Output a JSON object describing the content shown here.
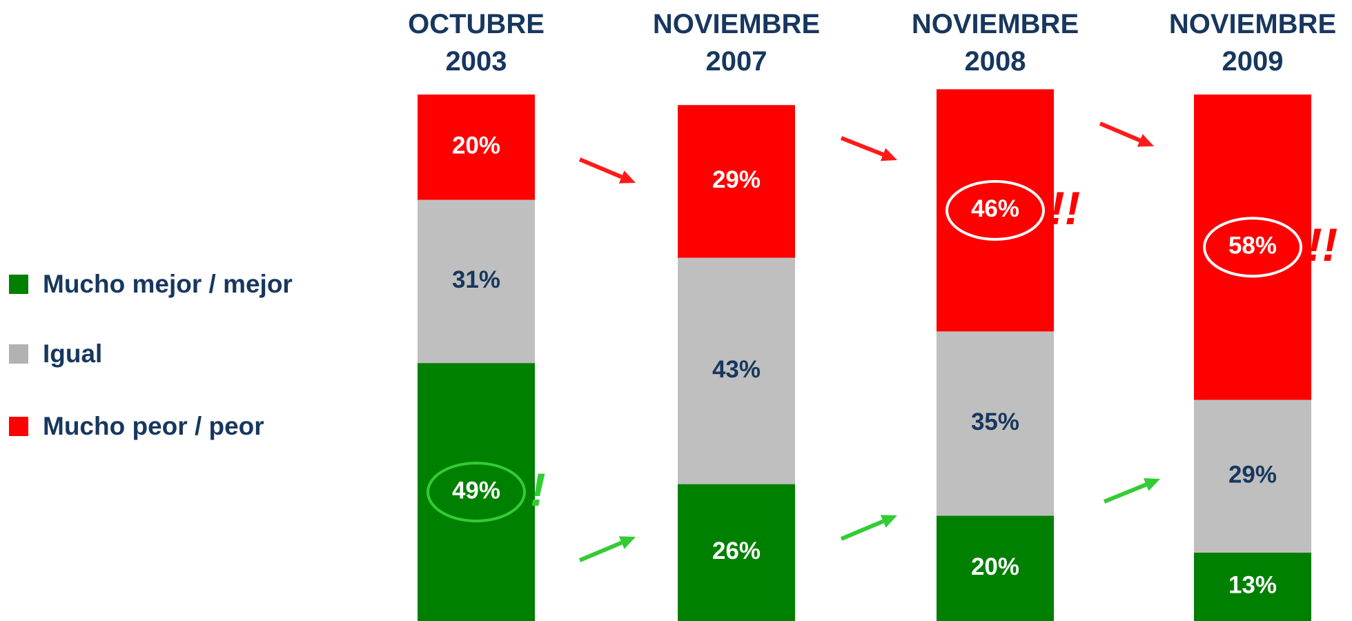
{
  "chart_data": {
    "type": "stacked_bar",
    "categories": [
      "OCTUBRE\n2003",
      "NOVIEMBRE\n2007",
      "NOVIEMBRE\n2008",
      "NOVIEMBRE\n2009"
    ],
    "series": [
      {
        "name": "Mucho mejor / mejor",
        "color": "#008000",
        "label_color": "#ffffff",
        "values": [
          49,
          26,
          20,
          13
        ],
        "value_labels": [
          "49%",
          "26%",
          "20%",
          "13%"
        ]
      },
      {
        "name": "Igual",
        "color": "#bfbfbf",
        "legend_color": "#b2b2b2",
        "label_color": "#17375e",
        "values": [
          31,
          43,
          35,
          29
        ],
        "value_labels": [
          "31%",
          "43%",
          "35%",
          "29%"
        ]
      },
      {
        "name": "Mucho peor / peor",
        "color": "#ff0000",
        "label_color": "#ffffff",
        "values": [
          20,
          29,
          46,
          58
        ],
        "value_labels": [
          "20%",
          "29%",
          "46%",
          "58%"
        ]
      }
    ],
    "ylim": [
      0,
      100
    ],
    "annotations": [
      {
        "text": "!",
        "series": 0,
        "category": 0,
        "color": "#33cc33"
      },
      {
        "text": "!!",
        "series": 2,
        "category": 2,
        "color": "#ff0000"
      },
      {
        "text": "!!",
        "series": 2,
        "category": 3,
        "color": "#ff0000"
      }
    ]
  }
}
